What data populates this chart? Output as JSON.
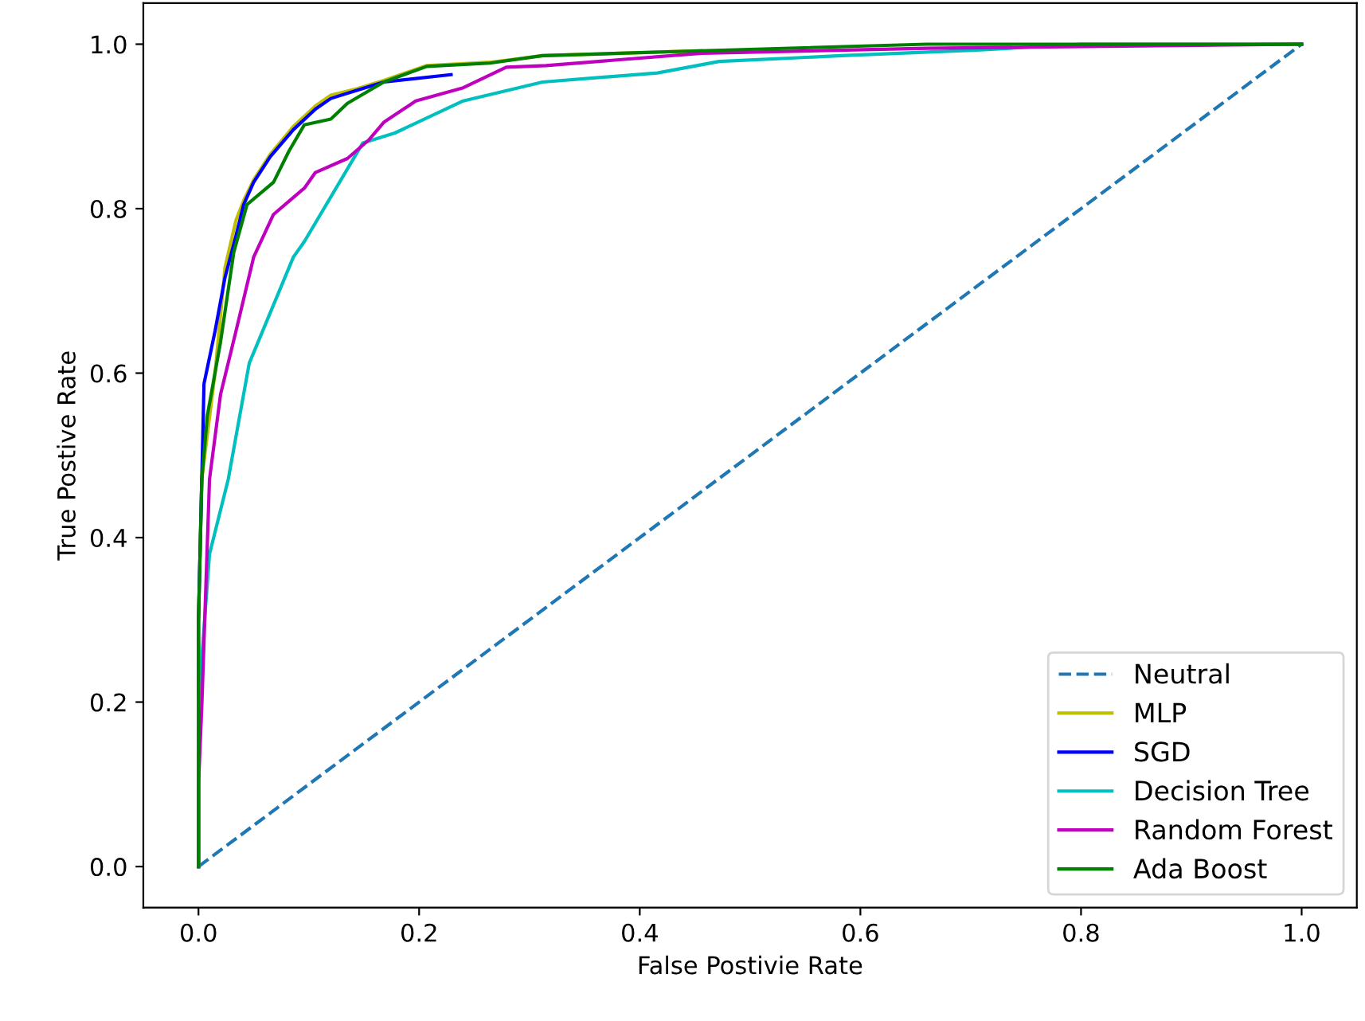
{
  "chart_data": {
    "type": "line",
    "xlabel": "False Postivie Rate",
    "ylabel": "True Postive Rate",
    "xlim": [
      -0.05,
      1.05
    ],
    "ylim": [
      -0.05,
      1.05
    ],
    "xticks": [
      {
        "value": 0,
        "label": "0.0"
      },
      0.2,
      0.4,
      0.6,
      0.8,
      {
        "value": 1,
        "label": "1.0"
      }
    ],
    "yticks": [
      {
        "value": 0,
        "label": "0.0"
      },
      0.2,
      0.4,
      0.6,
      0.8,
      {
        "value": 1,
        "label": "1.0"
      }
    ],
    "grid": false,
    "legend": "bottom right",
    "series": [
      {
        "name": "Neutral",
        "color": "#1f77b4",
        "line_style": "dashed",
        "x": [
          0,
          1
        ],
        "values": [
          0,
          1
        ]
      },
      {
        "name": "MLP",
        "color": "#bfbf00",
        "x": [
          0,
          0,
          0.003,
          0.015,
          0.024,
          0.034,
          0.041,
          0.05,
          0.065,
          0.086,
          0.106,
          0.12,
          0.144,
          0.168,
          0.207,
          0.264,
          0.312,
          0.456
        ],
        "values": [
          0,
          0.3,
          0.471,
          0.6,
          0.728,
          0.786,
          0.81,
          0.835,
          0.866,
          0.9,
          0.925,
          0.938,
          0.946,
          0.956,
          0.974,
          0.978,
          0.986,
          0.992
        ]
      },
      {
        "name": "SGD",
        "color": "#0000ff",
        "x": [
          0,
          0,
          0.003,
          0.005,
          0.015,
          0.024,
          0.034,
          0.041,
          0.05,
          0.065,
          0.086,
          0.106,
          0.12,
          0.144,
          0.168,
          0.229
        ],
        "values": [
          0,
          0.3,
          0.471,
          0.587,
          0.651,
          0.716,
          0.767,
          0.805,
          0.832,
          0.863,
          0.896,
          0.921,
          0.934,
          0.944,
          0.954,
          0.963
        ]
      },
      {
        "name": "Decision Tree",
        "color": "#00bfbf",
        "x": [
          0,
          0,
          0.01,
          0.027,
          0.046,
          0.086,
          0.096,
          0.149,
          0.178,
          0.24,
          0.312,
          0.416,
          0.472,
          0.583,
          0.709,
          0.8,
          1
        ],
        "values": [
          0,
          0.2,
          0.38,
          0.471,
          0.612,
          0.741,
          0.76,
          0.88,
          0.892,
          0.931,
          0.954,
          0.965,
          0.979,
          0.986,
          0.993,
          1.0,
          1.0
        ]
      },
      {
        "name": "Random Forest",
        "color": "#bf00bf",
        "x": [
          0,
          0,
          0.003,
          0.01,
          0.02,
          0.034,
          0.05,
          0.068,
          0.096,
          0.106,
          0.135,
          0.154,
          0.168,
          0.197,
          0.24,
          0.279,
          0.315,
          0.456,
          0.66,
          1
        ],
        "values": [
          0,
          0.1,
          0.195,
          0.471,
          0.574,
          0.651,
          0.741,
          0.793,
          0.825,
          0.844,
          0.861,
          0.883,
          0.905,
          0.931,
          0.947,
          0.972,
          0.974,
          0.989,
          0.995,
          1.0
        ]
      },
      {
        "name": "Ada Boost",
        "color": "#008000",
        "x": [
          0,
          0,
          0.003,
          0.008,
          0.02,
          0.032,
          0.044,
          0.068,
          0.082,
          0.096,
          0.12,
          0.135,
          0.168,
          0.207,
          0.264,
          0.312,
          0.456,
          0.66,
          1
        ],
        "values": [
          0,
          0.297,
          0.471,
          0.548,
          0.638,
          0.747,
          0.805,
          0.832,
          0.87,
          0.902,
          0.909,
          0.928,
          0.954,
          0.973,
          0.977,
          0.986,
          0.992,
          1.0,
          1.0
        ]
      }
    ]
  }
}
